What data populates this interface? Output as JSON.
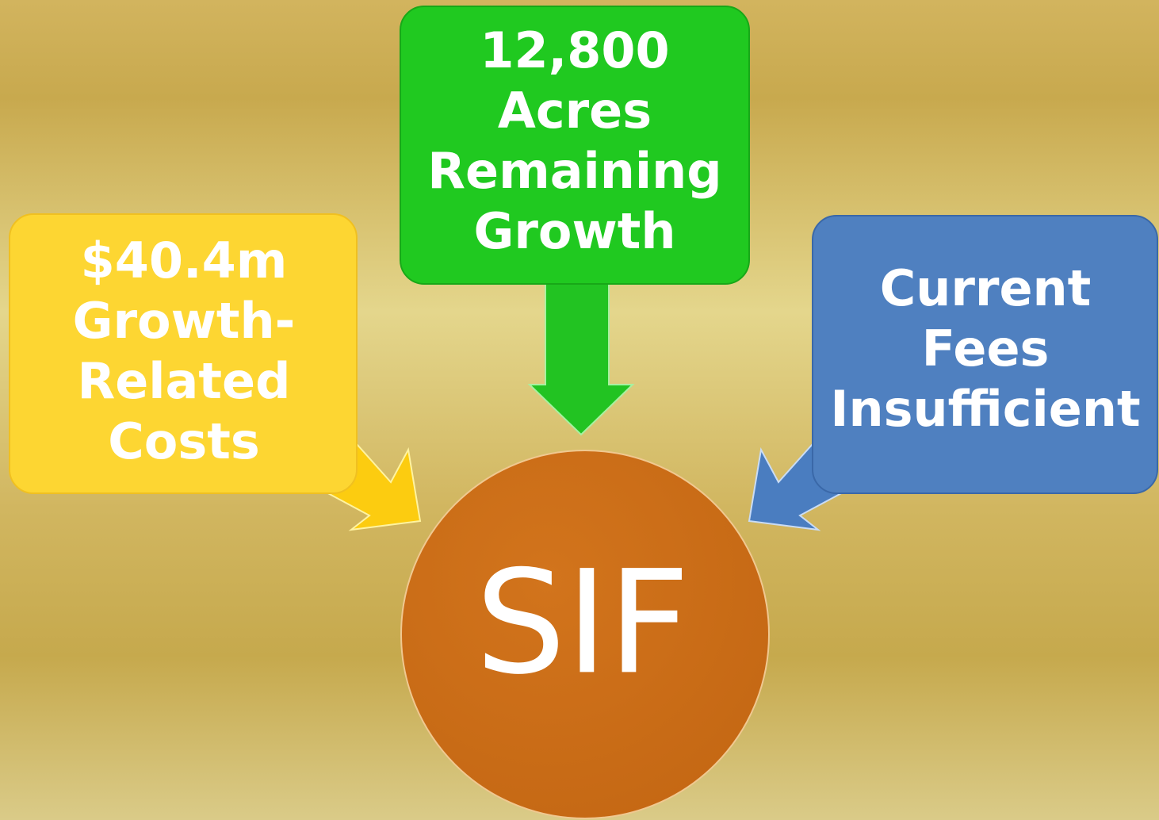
{
  "nodes": [
    {
      "lines": [
        "$40.4m",
        "Growth-",
        "Related",
        "Costs"
      ]
    },
    {
      "lines": [
        "12,800",
        "Acres",
        "Remaining",
        "Growth"
      ]
    },
    {
      "lines": [
        "Current",
        "Fees",
        "Insufficient"
      ]
    }
  ],
  "center": {
    "label": "SIF"
  }
}
